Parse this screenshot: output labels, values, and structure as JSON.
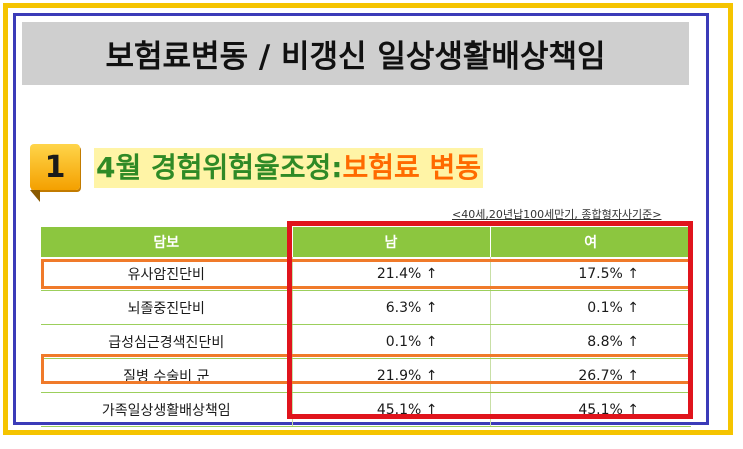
{
  "banner": {
    "title": "보험료변동 / 비갱신 일상생활배상책임"
  },
  "section": {
    "number": "1",
    "heading_green": "4월 경험위험율조정:",
    "heading_orange": "보험료 변동",
    "note": "<40세,20년납100세만기, 종합형자사기준>"
  },
  "table": {
    "headers": [
      "담보",
      "남",
      "여"
    ],
    "rows": [
      {
        "name": "유사암진단비",
        "male": "21.4% ↑",
        "female": "17.5% ↑"
      },
      {
        "name": "뇌졸중진단비",
        "male": "6.3% ↑",
        "female": "0.1% ↑"
      },
      {
        "name": "급성심근경색진단비",
        "male": "0.1% ↑",
        "female": "8.8% ↑"
      },
      {
        "name": "질병 수술비 군",
        "male": "21.9% ↑",
        "female": "26.7% ↑"
      },
      {
        "name": "가족일상생활배상책임",
        "male": "45.1% ↑",
        "female": "45.1% ↑"
      }
    ]
  },
  "colors": {
    "frame_outer": "#f5c400",
    "frame_inner": "#3b3bb8",
    "header_green": "#8cc63f",
    "highlight_orange": "#f07a2a",
    "highlight_red": "#e0141c"
  }
}
